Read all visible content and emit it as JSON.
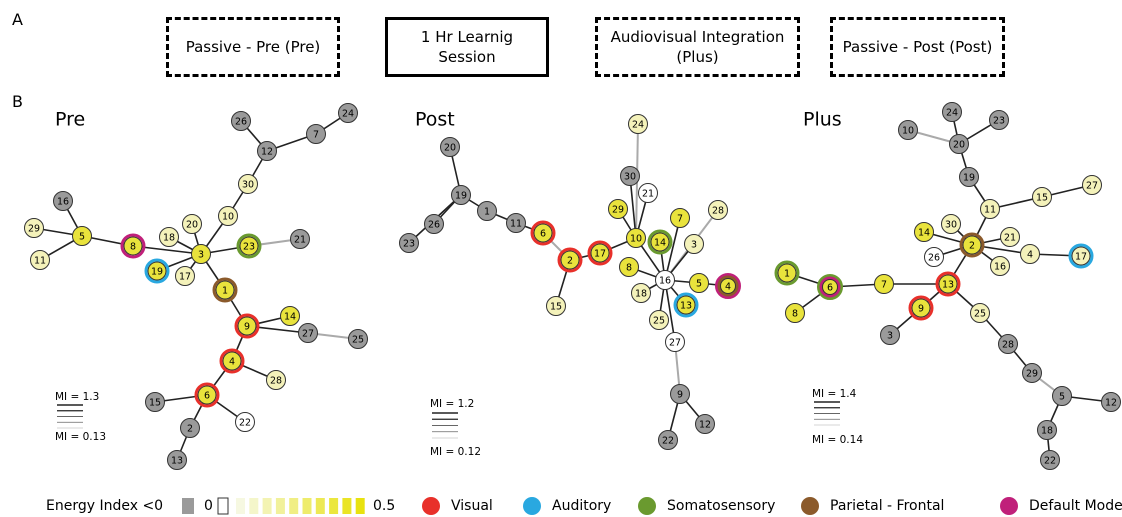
{
  "panel_labels": [
    "A",
    "B"
  ],
  "header": {
    "boxes": [
      "Passive - Pre (Pre)",
      "1 Hr Learnig Session",
      "Audiovisual Integration (Plus)",
      "Passive - Post (Post)"
    ]
  },
  "networks": [
    {
      "title": "Pre",
      "mi_max": "MI = 1.3",
      "mi_min": "MI = 0.13",
      "nodes": [
        "26",
        "7",
        "24",
        "12",
        "30",
        "10",
        "20",
        "18",
        "3",
        "23",
        "21",
        "8",
        "5",
        "16",
        "29",
        "11",
        "19",
        "17",
        "1",
        "9",
        "14",
        "27",
        "25",
        "4",
        "28",
        "6",
        "15",
        "22",
        "2",
        "13"
      ]
    },
    {
      "title": "Post",
      "mi_max": "MI = 1.2",
      "mi_min": "MI = 0.12",
      "nodes": [
        "24",
        "20",
        "19",
        "1",
        "11",
        "26",
        "23",
        "30",
        "21",
        "29",
        "7",
        "28",
        "6",
        "10",
        "14",
        "3",
        "2",
        "17",
        "8",
        "16",
        "5",
        "4",
        "15",
        "18",
        "13",
        "25",
        "27",
        "9",
        "12",
        "22"
      ]
    },
    {
      "title": "Plus",
      "mi_max": "MI = 1.4",
      "mi_min": "MI = 0.14",
      "nodes": [
        "24",
        "10",
        "20",
        "23",
        "19",
        "11",
        "15",
        "27",
        "30",
        "14",
        "2",
        "21",
        "26",
        "16",
        "4",
        "17",
        "1",
        "6",
        "7",
        "13",
        "8",
        "9",
        "3",
        "25",
        "28",
        "29",
        "5",
        "12",
        "18",
        "22"
      ]
    }
  ],
  "legend": {
    "energy_label": "Energy Index <0",
    "zero": "0",
    "max": "0.5",
    "networks": [
      "Visual",
      "Auditory",
      "Somatosensory",
      "Parietal - Frontal",
      "Default Mode"
    ]
  }
}
